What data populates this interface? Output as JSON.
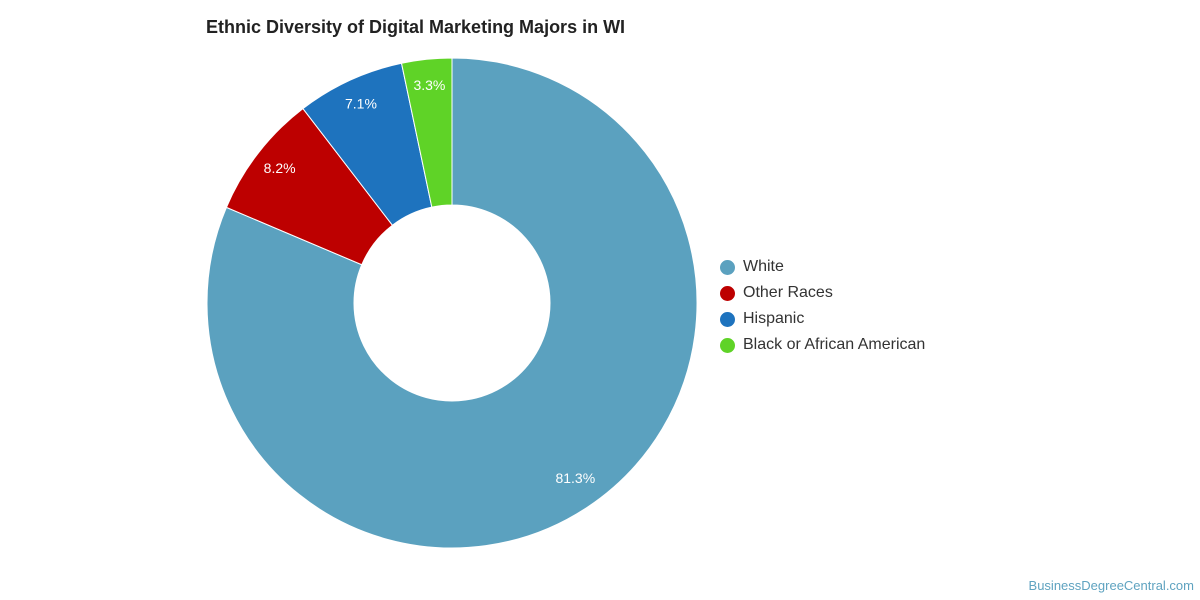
{
  "chart_data": {
    "type": "pie",
    "title": "Ethnic Diversity of Digital Marketing Majors in WI",
    "donut": true,
    "unit": "%",
    "slices": [
      {
        "label": "White",
        "value": 81.3,
        "value_label": "81.3%",
        "color": "#5ba1bf"
      },
      {
        "label": "Other Races",
        "value": 8.2,
        "value_label": "8.2%",
        "color": "#bd0000"
      },
      {
        "label": "Hispanic",
        "value": 7.1,
        "value_label": "7.1%",
        "color": "#1e73be"
      },
      {
        "label": "Black or African American",
        "value": 3.3,
        "value_label": "3.3%",
        "color": "#5fd327"
      }
    ],
    "legend_position": "right",
    "label_color": "#ffffff"
  },
  "footer": {
    "credit": "BusinessDegreeCentral.com"
  }
}
